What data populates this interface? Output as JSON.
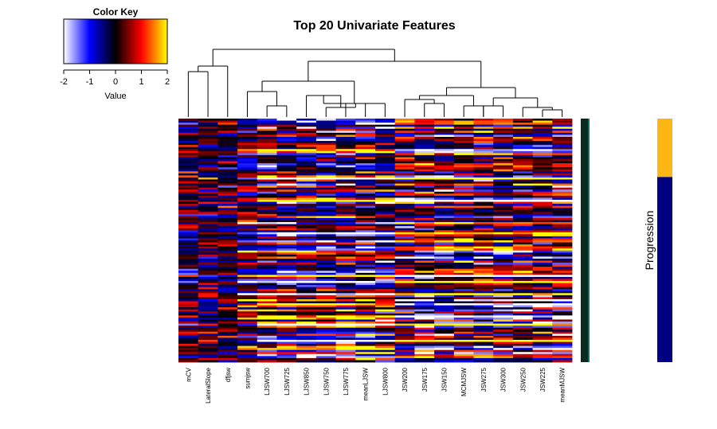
{
  "chart_data": {
    "type": "heatmap",
    "title": "Top 20 Univariate Features",
    "columns": [
      "mCV",
      "LateralSlope",
      "dfjsw",
      "sumjsw",
      "LJSW700",
      "LJSW725",
      "LJSW850",
      "LJSW750",
      "LJSW775",
      "meanLJSW",
      "LJSW800",
      "JSW200",
      "JSW175",
      "JSW150",
      "MCMJSW",
      "JSW275",
      "JSW300",
      "JSW250",
      "JSW225",
      "meanMJSW"
    ],
    "row_count": 120,
    "color_scale": {
      "min": -2,
      "max": 2,
      "stops": [
        "#ffffff",
        "#0000ff",
        "#000000",
        "#ff0000",
        "#ffff00"
      ]
    },
    "color_key": {
      "title": "Color Key",
      "xlabel": "Value",
      "ticks": [
        "-2",
        "-1",
        "0",
        "1",
        "2"
      ]
    },
    "side_bar": {
      "label": "Progression",
      "groups": [
        {
          "fraction": 0.24,
          "color": "#fdb714"
        },
        {
          "fraction": 0.76,
          "color": "#000080"
        }
      ]
    },
    "row_side_color": "#0a2a1e"
  }
}
